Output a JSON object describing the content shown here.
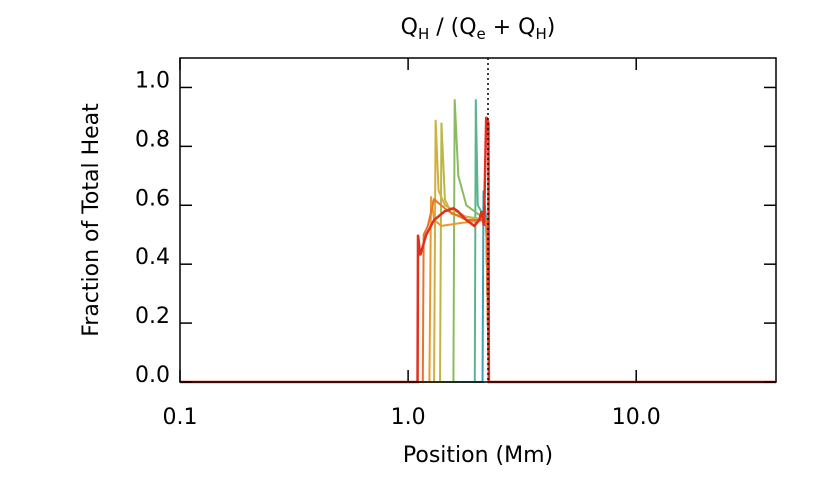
{
  "chart_data": {
    "type": "line",
    "title": [
      {
        "text": "Q"
      },
      {
        "text": "H",
        "sub": true
      },
      {
        "text": " / (Q"
      },
      {
        "text": "e",
        "sub": true
      },
      {
        "text": " + Q"
      },
      {
        "text": "H",
        "sub": true
      },
      {
        "text": ")"
      }
    ],
    "xlabel": "Position (Mm)",
    "ylabel": "Fraction of Total Heat",
    "xscale": "log",
    "xlim": [
      0.1,
      41
    ],
    "ylim": [
      0,
      1.1
    ],
    "xticks": [
      0.1,
      {
        "value": 1,
        "label": "1.0"
      },
      {
        "value": 10,
        "label": "10.0"
      }
    ],
    "yticks": [
      {
        "value": 0,
        "label": "0.0"
      },
      0.2,
      0.4,
      0.6,
      0.8,
      {
        "value": 1,
        "label": "1.0"
      }
    ],
    "vline": 2.24,
    "series": [
      {
        "color": "#3fa2b4",
        "x": [
          0.1,
          2.12,
          2.14,
          2.2,
          2.26,
          41
        ],
        "values": [
          0,
          0,
          0.65,
          0.55,
          0,
          0
        ]
      },
      {
        "color": "#5ab58e",
        "x": [
          0.1,
          1.96,
          1.98,
          2.02,
          2.2,
          2.26,
          41
        ],
        "values": [
          0,
          0,
          0.96,
          0.6,
          0.55,
          0,
          0
        ]
      },
      {
        "color": "#8cba60",
        "x": [
          0.1,
          1.58,
          1.6,
          1.66,
          1.8,
          2.2,
          2.26,
          41
        ],
        "values": [
          0,
          0,
          0.96,
          0.7,
          0.6,
          0.55,
          0,
          0
        ]
      },
      {
        "color": "#b8b848",
        "x": [
          0.1,
          1.38,
          1.4,
          1.45,
          1.55,
          2.2,
          2.26,
          41
        ],
        "values": [
          0,
          0,
          0.88,
          0.62,
          0.57,
          0.55,
          0,
          0
        ]
      },
      {
        "color": "#d4ae40",
        "x": [
          0.1,
          1.3,
          1.32,
          1.36,
          1.45,
          1.8,
          2.2,
          2.26,
          41
        ],
        "values": [
          0,
          0,
          0.89,
          0.65,
          0.6,
          0.56,
          0.55,
          0,
          0
        ]
      },
      {
        "color": "#e89a30",
        "x": [
          0.1,
          1.24,
          1.26,
          1.3,
          1.4,
          1.7,
          2.2,
          2.26,
          41
        ],
        "values": [
          0,
          0,
          0.63,
          0.55,
          0.53,
          0.54,
          0.55,
          0,
          0
        ]
      },
      {
        "color": "#e8742a",
        "x": [
          0.1,
          1.16,
          1.17,
          1.22,
          1.3,
          1.5,
          1.8,
          2.2,
          2.26,
          41
        ],
        "values": [
          0,
          0,
          0.5,
          0.53,
          0.62,
          0.58,
          0.55,
          0.55,
          0,
          0
        ]
      },
      {
        "color": "#e0301e",
        "x": [
          0.1,
          1.1,
          1.105,
          1.13,
          1.2,
          1.3,
          1.45,
          1.58,
          1.65,
          1.8,
          1.95,
          2.05,
          2.1,
          2.15,
          2.2,
          2.25,
          2.26,
          41
        ],
        "values": [
          0,
          0,
          0.5,
          0.43,
          0.5,
          0.55,
          0.58,
          0.59,
          0.58,
          0.55,
          0.53,
          0.55,
          0.58,
          0.53,
          0.9,
          0.88,
          0,
          0
        ]
      }
    ]
  }
}
